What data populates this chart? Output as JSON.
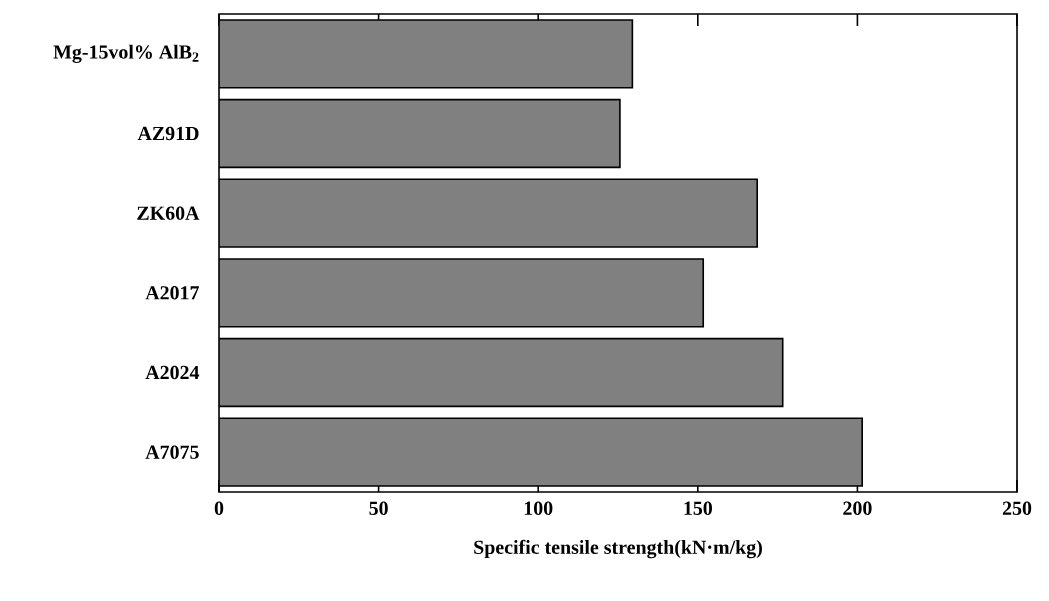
{
  "chart_data": {
    "type": "bar",
    "orientation": "horizontal",
    "categories": [
      "Mg-15vol% AlB$_{2}$",
      "AZ91D",
      "ZK60A",
      "A2017",
      "A2024",
      "A7075"
    ],
    "values": [
      129.5,
      125.6,
      168.6,
      151.7,
      176.6,
      201.5
    ],
    "color": "#808080",
    "xlabel": "Specific tensile strength(kN·m/kg)",
    "xlim": [
      0,
      250
    ],
    "xticks": [
      0,
      50,
      100,
      150,
      200,
      250
    ]
  }
}
